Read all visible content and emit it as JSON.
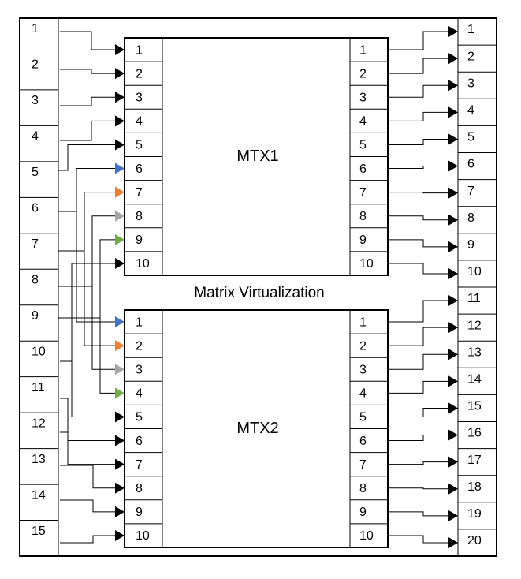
{
  "colors": {
    "line": "#000000",
    "blue": "#4472C4",
    "orange": "#ED7D31",
    "gray": "#A5A5A5",
    "green": "#70AD47"
  },
  "diagram": {
    "caption": "Matrix Virtualization",
    "inputs": [
      "1",
      "2",
      "3",
      "4",
      "5",
      "6",
      "7",
      "8",
      "9",
      "10",
      "11",
      "12",
      "13",
      "14",
      "15"
    ],
    "outputs": [
      "1",
      "2",
      "3",
      "4",
      "5",
      "6",
      "7",
      "8",
      "9",
      "10",
      "11",
      "12",
      "13",
      "14",
      "15",
      "16",
      "17",
      "18",
      "19",
      "20"
    ],
    "matrices": [
      {
        "name": "MTX1",
        "in_ports": [
          "1",
          "2",
          "3",
          "4",
          "5",
          "6",
          "7",
          "8",
          "9",
          "10"
        ],
        "out_ports": [
          "1",
          "2",
          "3",
          "4",
          "5",
          "6",
          "7",
          "8",
          "9",
          "10"
        ]
      },
      {
        "name": "MTX2",
        "in_ports": [
          "1",
          "2",
          "3",
          "4",
          "5",
          "6",
          "7",
          "8",
          "9",
          "10"
        ],
        "out_ports": [
          "1",
          "2",
          "3",
          "4",
          "5",
          "6",
          "7",
          "8",
          "9",
          "10"
        ]
      }
    ]
  }
}
